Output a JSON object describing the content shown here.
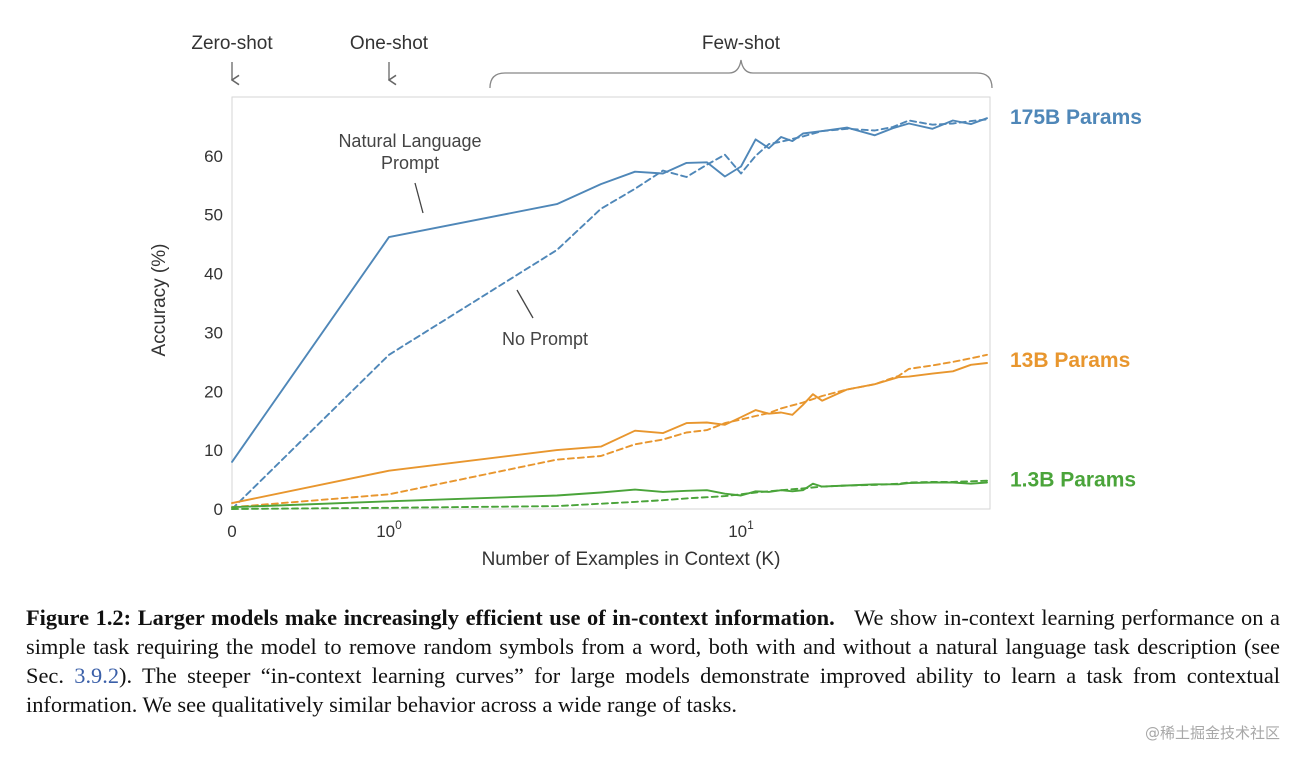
{
  "chart_data": {
    "type": "line",
    "xlabel": "Number of Examples in Context  (K)",
    "ylabel": "Accuracy (%)",
    "xscale": "symlog",
    "xlim": [
      0,
      50
    ],
    "ylim": [
      0,
      70
    ],
    "x_ticks": [
      {
        "value": 0,
        "label": "0"
      },
      {
        "value": 1,
        "label": "10",
        "exp": "0"
      },
      {
        "value": 10,
        "label": "10",
        "exp": "1"
      }
    ],
    "y_ticks": [
      0,
      10,
      20,
      30,
      40,
      50,
      60
    ],
    "regions": [
      {
        "label": "Zero-shot",
        "x": 0
      },
      {
        "label": "One-shot",
        "x": 1
      },
      {
        "label": "Few-shot",
        "range": [
          2,
          50
        ]
      }
    ],
    "annotations": [
      {
        "text": [
          "Natural Language",
          "Prompt"
        ],
        "points_to": {
          "x": 1.7,
          "y": 49
        }
      },
      {
        "text": [
          "No Prompt"
        ],
        "points_to": {
          "x": 3.5,
          "y": 37
        }
      }
    ],
    "line_styles": {
      "natural_language_prompt": "solid",
      "no_prompt": "dashed"
    },
    "series": [
      {
        "name": "175B Params",
        "color": "#4f87b8",
        "natural_language_prompt": [
          [
            0,
            8
          ],
          [
            1,
            46.2
          ],
          [
            3,
            51.8
          ],
          [
            4,
            55.2
          ],
          [
            5,
            57.3
          ],
          [
            6,
            57
          ],
          [
            7,
            58.8
          ],
          [
            8,
            58.9
          ],
          [
            9,
            56.5
          ],
          [
            10,
            58.2
          ],
          [
            11,
            62.8
          ],
          [
            12,
            61.3
          ],
          [
            13,
            63.2
          ],
          [
            14,
            62.5
          ],
          [
            15,
            63.8
          ],
          [
            17,
            64.2
          ],
          [
            20,
            64.8
          ],
          [
            24,
            63.5
          ],
          [
            27,
            64.7
          ],
          [
            30,
            65.5
          ],
          [
            35,
            64.6
          ],
          [
            40,
            66
          ],
          [
            45,
            65.4
          ],
          [
            50,
            66.4
          ]
        ],
        "no_prompt": [
          [
            0,
            0
          ],
          [
            1,
            26.2
          ],
          [
            3,
            44
          ],
          [
            4,
            51
          ],
          [
            5,
            54.4
          ],
          [
            6,
            57.5
          ],
          [
            7,
            56.4
          ],
          [
            8,
            58.5
          ],
          [
            9,
            60.2
          ],
          [
            10,
            57
          ],
          [
            11,
            60
          ],
          [
            12,
            62
          ],
          [
            13,
            62.4
          ],
          [
            15,
            63.3
          ],
          [
            17,
            64.2
          ],
          [
            20,
            64.6
          ],
          [
            24,
            64.3
          ],
          [
            27,
            64.9
          ],
          [
            30,
            66
          ],
          [
            35,
            65.3
          ],
          [
            40,
            65.5
          ],
          [
            45,
            65.9
          ],
          [
            50,
            66.2
          ]
        ]
      },
      {
        "name": "13B Params",
        "color": "#e8962e",
        "natural_language_prompt": [
          [
            0,
            1
          ],
          [
            1,
            6.5
          ],
          [
            3,
            10
          ],
          [
            4,
            10.6
          ],
          [
            5,
            13.3
          ],
          [
            6,
            12.9
          ],
          [
            7,
            14.6
          ],
          [
            8,
            14.7
          ],
          [
            9,
            14.3
          ],
          [
            10,
            15.6
          ],
          [
            11,
            16.8
          ],
          [
            12,
            16.2
          ],
          [
            13,
            16.4
          ],
          [
            14,
            16
          ],
          [
            15,
            17.7
          ],
          [
            16,
            19.5
          ],
          [
            17,
            18.4
          ],
          [
            20,
            20.3
          ],
          [
            24,
            21.2
          ],
          [
            28,
            22.4
          ],
          [
            30,
            22.5
          ],
          [
            35,
            23
          ],
          [
            40,
            23.4
          ],
          [
            45,
            24.5
          ],
          [
            50,
            24.8
          ]
        ],
        "no_prompt": [
          [
            0,
            0.3
          ],
          [
            1,
            2.5
          ],
          [
            3,
            8.4
          ],
          [
            4,
            9
          ],
          [
            5,
            11
          ],
          [
            6,
            11.8
          ],
          [
            7,
            13
          ],
          [
            8,
            13.4
          ],
          [
            9,
            14.6
          ],
          [
            10,
            15.2
          ],
          [
            11,
            15.8
          ],
          [
            12,
            16.3
          ],
          [
            13,
            17.1
          ],
          [
            15,
            18.1
          ],
          [
            17,
            19.2
          ],
          [
            20,
            20.3
          ],
          [
            24,
            21.2
          ],
          [
            28,
            22.6
          ],
          [
            30,
            23.8
          ],
          [
            35,
            24.4
          ],
          [
            40,
            25
          ],
          [
            45,
            25.6
          ],
          [
            50,
            26.2
          ]
        ]
      },
      {
        "name": "1.3B Params",
        "color": "#4aa43a",
        "natural_language_prompt": [
          [
            0,
            0.3
          ],
          [
            1,
            1.3
          ],
          [
            3,
            2.3
          ],
          [
            4,
            2.8
          ],
          [
            5,
            3.3
          ],
          [
            6,
            2.9
          ],
          [
            7,
            3.1
          ],
          [
            8,
            3.2
          ],
          [
            9,
            2.6
          ],
          [
            10,
            2.3
          ],
          [
            11,
            3
          ],
          [
            12,
            2.9
          ],
          [
            13,
            3.2
          ],
          [
            14,
            3
          ],
          [
            15,
            3.2
          ],
          [
            16,
            4.3
          ],
          [
            17,
            3.8
          ],
          [
            20,
            4
          ],
          [
            24,
            4.2
          ],
          [
            28,
            4.2
          ],
          [
            30,
            4.4
          ],
          [
            35,
            4.5
          ],
          [
            40,
            4.5
          ],
          [
            45,
            4.3
          ],
          [
            50,
            4.5
          ]
        ],
        "no_prompt": [
          [
            0,
            0
          ],
          [
            1,
            0.2
          ],
          [
            3,
            0.5
          ],
          [
            4,
            0.9
          ],
          [
            5,
            1.2
          ],
          [
            6,
            1.5
          ],
          [
            7,
            1.8
          ],
          [
            8,
            2
          ],
          [
            9,
            2.2
          ],
          [
            10,
            2.5
          ],
          [
            11,
            2.8
          ],
          [
            12,
            3
          ],
          [
            13,
            3.2
          ],
          [
            15,
            3.5
          ],
          [
            17,
            3.8
          ],
          [
            20,
            4
          ],
          [
            24,
            4.1
          ],
          [
            28,
            4.3
          ],
          [
            30,
            4.5
          ],
          [
            35,
            4.6
          ],
          [
            40,
            4.6
          ],
          [
            45,
            4.7
          ],
          [
            50,
            4.8
          ]
        ]
      }
    ]
  },
  "caption": {
    "title": "Figure 1.2: Larger models make increasingly efficient use of in-context information.",
    "text_before_ref": "We show in-context learning performance on a simple task requiring the model to remove random symbols from a word, both with and without a natural language task description (see Sec.",
    "ref": "3.9.2",
    "text_after_ref": "). The steeper “in-context learning curves” for large models demonstrate improved ability to learn a task from contextual information. We see qualitatively similar behavior across a wide range of tasks."
  },
  "watermark": "@稀土掘金技术社区"
}
